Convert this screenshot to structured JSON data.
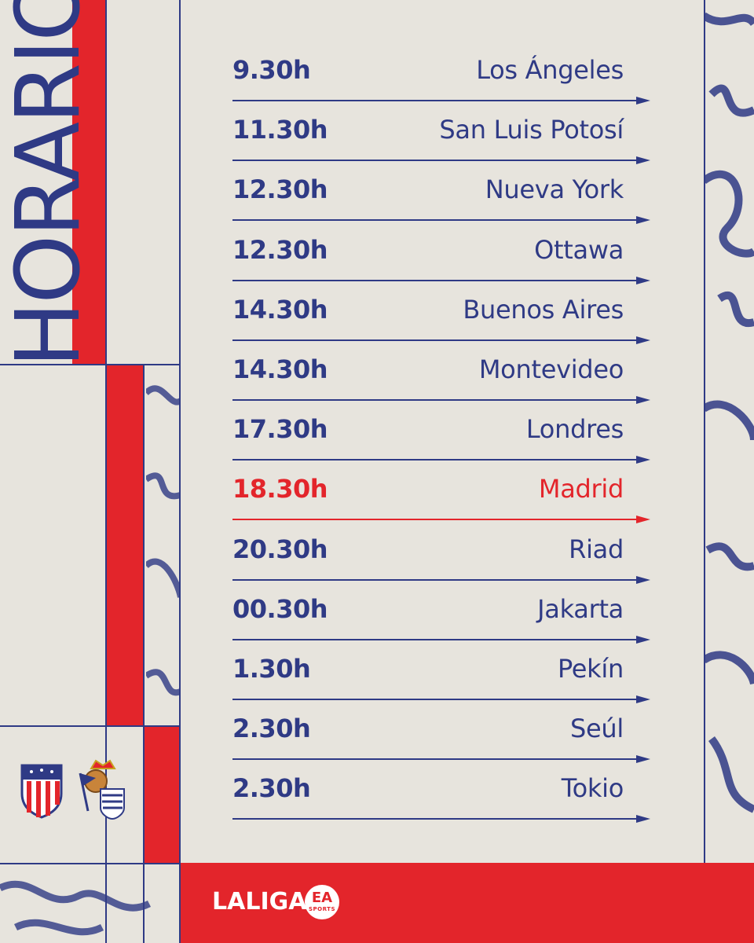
{
  "header": {
    "title": "HORARIOS"
  },
  "schedule": [
    {
      "time": "9.30h",
      "city": "Los Ángeles"
    },
    {
      "time": "11.30h",
      "city": "San Luis Potosí"
    },
    {
      "time": "12.30h",
      "city": "Nueva York"
    },
    {
      "time": "12.30h",
      "city": "Ottawa"
    },
    {
      "time": "14.30h",
      "city": "Buenos Aires"
    },
    {
      "time": "14.30h",
      "city": "Montevideo"
    },
    {
      "time": "17.30h",
      "city": "Londres"
    },
    {
      "time": "18.30h",
      "city": "Madrid",
      "highlight": true
    },
    {
      "time": "20.30h",
      "city": "Riad"
    },
    {
      "time": "00.30h",
      "city": "Jakarta"
    },
    {
      "time": "1.30h",
      "city": "Pekín"
    },
    {
      "time": "2.30h",
      "city": "Seúl"
    },
    {
      "time": "2.30h",
      "city": "Tokio"
    }
  ],
  "footer": {
    "brand": "LALIGA",
    "badge_top": "EA",
    "badge_bottom": "SPORTS"
  },
  "crests": {
    "left": "atletico-madrid-crest",
    "right": "real-sociedad-crest"
  },
  "colors": {
    "navy": "#2f3a85",
    "red": "#e3252b",
    "paper": "#e7e4dd"
  }
}
